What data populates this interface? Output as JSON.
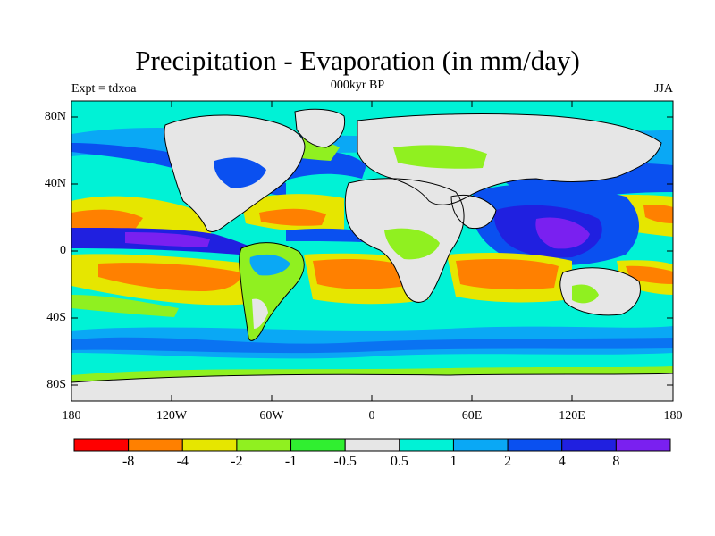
{
  "title": "Precipitation - Evaporation (in mm/day)",
  "subtitle_left": "Expt = tdxoa",
  "subtitle_center": "000kyr BP",
  "subtitle_right": "JJA",
  "y_axis_labels": [
    "80N",
    "40N",
    "0",
    "40S",
    "80S"
  ],
  "x_axis_labels": [
    "180",
    "120W",
    "60W",
    "0",
    "60E",
    "120E",
    "180"
  ],
  "legend": {
    "labels": [
      "-8",
      "-4",
      "-2",
      "-1",
      "-0.5",
      "0.5",
      "1",
      "2",
      "4",
      "8"
    ],
    "colors": [
      "#ff0000",
      "#ff8000",
      "#e6e600",
      "#90f020",
      "#30ef30",
      "#e6e6e6",
      "#00f2d6",
      "#0aa8f5",
      "#0a50f0",
      "#2020e0",
      "#7a20f0"
    ]
  },
  "colors": {
    "land_dry": "#e6e6e6",
    "ocean_wet": "#00e6d2",
    "coast": "#000000"
  }
}
